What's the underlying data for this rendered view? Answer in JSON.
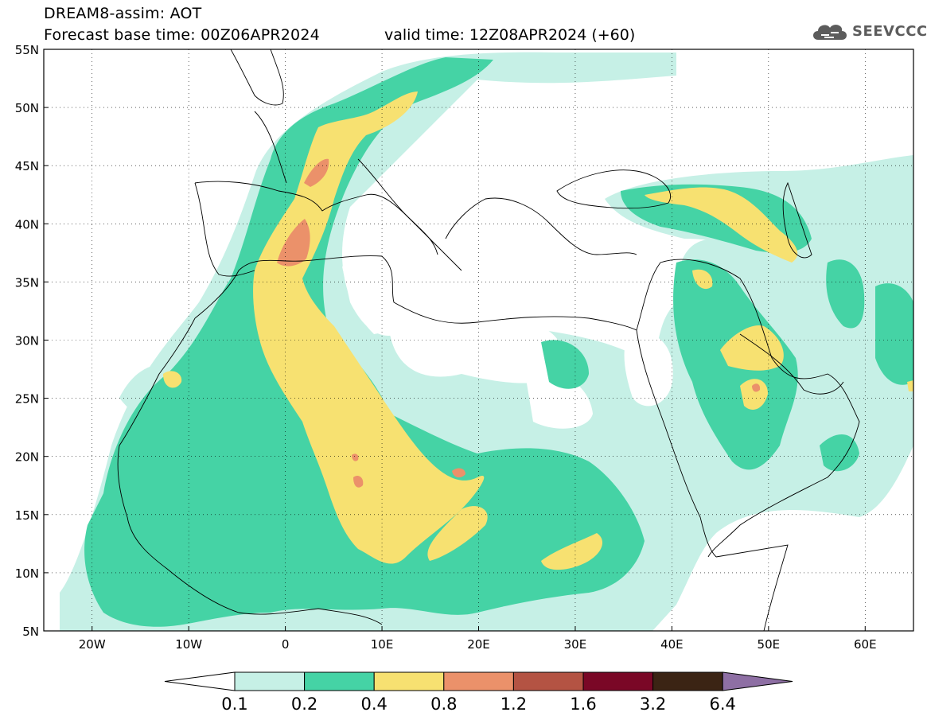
{
  "header": {
    "title": "DREAM8-assim: AOT",
    "base_time": "Forecast base time: 00Z06APR2024",
    "valid_time": "valid time: 12Z08APR2024 (+60)"
  },
  "logo": {
    "text": "SEEVCCC",
    "icon": "cloud-icon"
  },
  "map": {
    "lon_range": [
      -25,
      65
    ],
    "lat_range": [
      5,
      55
    ],
    "lat_labels": [
      "55N",
      "50N",
      "45N",
      "40N",
      "35N",
      "30N",
      "25N",
      "20N",
      "15N",
      "10N",
      "5N"
    ],
    "lon_labels": [
      "20W",
      "10W",
      "0",
      "10E",
      "20E",
      "30E",
      "40E",
      "50E",
      "60E"
    ],
    "grid": "dotted"
  },
  "colorbar": {
    "levels": [
      "0.1",
      "0.2",
      "0.4",
      "0.8",
      "1.2",
      "1.6",
      "3.2",
      "6.4"
    ],
    "colors": [
      "#ffffff",
      "#c6f0e6",
      "#45d3a5",
      "#f7e171",
      "#eb916a",
      "#b45343",
      "#7a0726",
      "#3b2414",
      "#8e6fa4"
    ]
  }
}
